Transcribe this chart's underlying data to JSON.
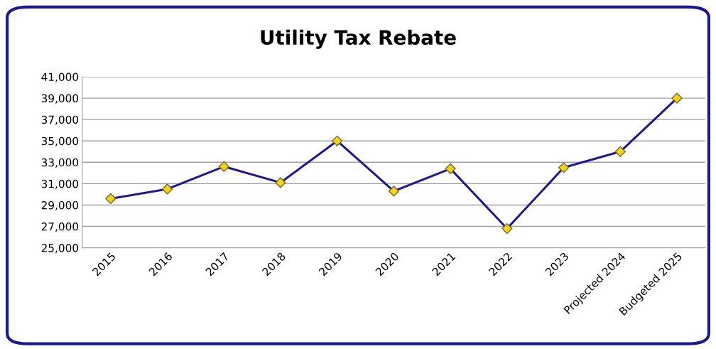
{
  "chart_data": {
    "type": "line",
    "title": "Utility Tax Rebate",
    "categories": [
      "2015",
      "2016",
      "2017",
      "2018",
      "2019",
      "2020",
      "2021",
      "2022",
      "2023",
      "Projected 2024",
      "Budgeted 2025"
    ],
    "series": [
      {
        "color": "#1f1a8c",
        "values": [
          29600,
          30500,
          32600,
          31100,
          35000,
          30300,
          32400,
          26800,
          32500,
          34000,
          39000
        ]
      }
    ],
    "ylim": [
      25000,
      41000
    ],
    "yticks": [
      {
        "value": 25000,
        "label": "25,000"
      },
      {
        "value": 27000,
        "label": "27,000"
      },
      {
        "value": 29000,
        "label": "29,000"
      },
      {
        "value": 31000,
        "label": "31,000"
      },
      {
        "value": 33000,
        "label": "33,000"
      },
      {
        "value": 35000,
        "label": "35,000"
      },
      {
        "value": 37000,
        "label": "37,000"
      },
      {
        "value": 39000,
        "label": "39,000"
      },
      {
        "value": 41000,
        "label": "41,000"
      }
    ],
    "grid": "y",
    "marker": "diamond",
    "line_style": "solid"
  }
}
